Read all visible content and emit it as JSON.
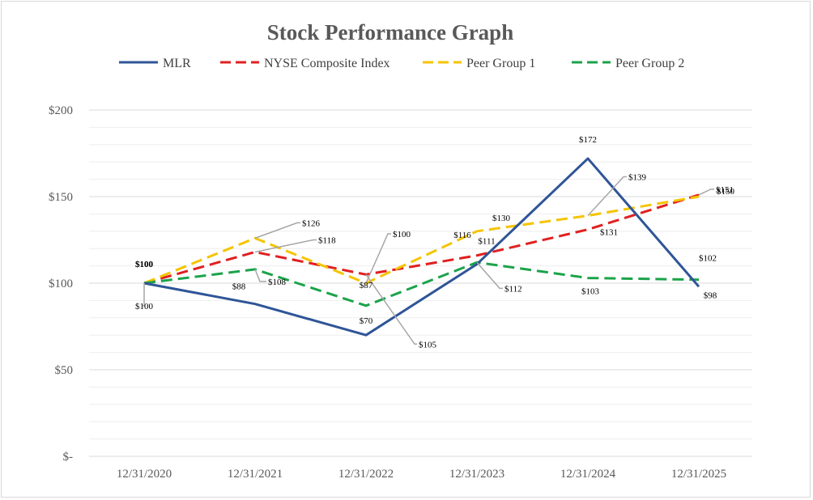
{
  "chart_data": {
    "type": "line",
    "title": "Stock Performance Graph",
    "xlabel": "",
    "ylabel": "",
    "categories": [
      "12/31/2020",
      "12/31/2021",
      "12/31/2022",
      "12/31/2023",
      "12/31/2024",
      "12/31/2025"
    ],
    "ylim": [
      0,
      200
    ],
    "yticks": [
      0,
      50,
      100,
      150,
      200
    ],
    "ytick_labels": [
      "$-",
      "$50",
      "$100",
      "$150",
      "$200"
    ],
    "grid": true,
    "legend_position": "top",
    "series": [
      {
        "name": "MLR",
        "color": "#2F5597",
        "dash": "solid",
        "values": [
          100,
          88,
          70,
          111,
          172,
          98
        ],
        "labels": [
          "$100",
          "$88",
          "$70",
          "$111",
          "$172",
          "$98"
        ]
      },
      {
        "name": "NYSE Composite Index",
        "color": "#E02020",
        "dash": "dashed",
        "values": [
          100,
          118,
          105,
          116,
          131,
          151
        ],
        "labels": [
          "$100",
          "$118",
          "$105",
          "$116",
          "$131",
          "$151"
        ]
      },
      {
        "name": "Peer Group 1",
        "color": "#F5C400",
        "dash": "dashed",
        "values": [
          100,
          126,
          100,
          130,
          139,
          150
        ],
        "labels": [
          "$100",
          "$126",
          "$100",
          "$130",
          "$139",
          "$150"
        ]
      },
      {
        "name": "Peer Group 2",
        "color": "#1BA34A",
        "dash": "dashed",
        "values": [
          100,
          108,
          87,
          112,
          103,
          102
        ],
        "labels": [
          "$100",
          "$108",
          "$87",
          "$112",
          "$103",
          "$102"
        ]
      }
    ]
  }
}
